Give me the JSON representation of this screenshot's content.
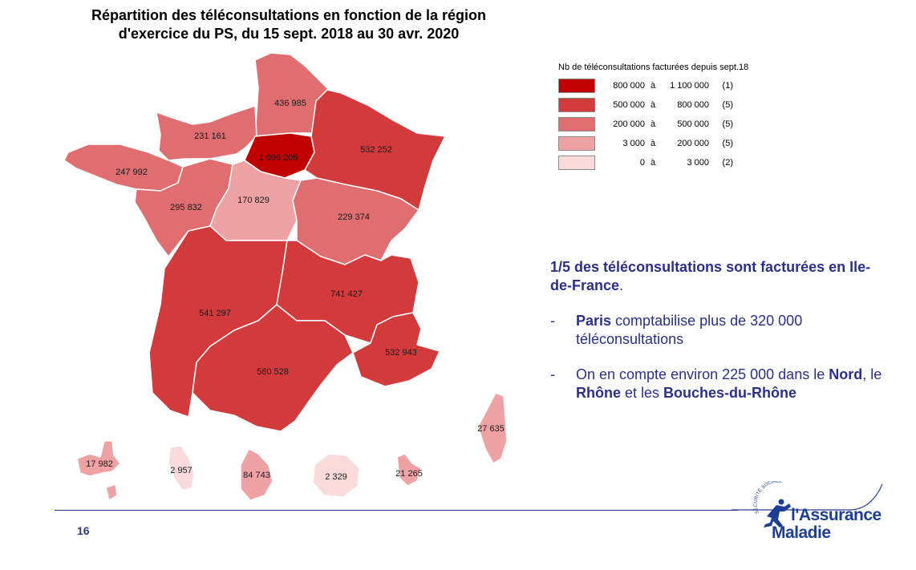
{
  "title_line1": "Répartition des téléconsultations en fonction de la région",
  "title_line2": "d'exercice du PS, du 15 sept. 2018 au 30 avr. 2020",
  "legend": {
    "title": "Nb de téléconsultations facturées depuis sept.18",
    "classes": [
      {
        "from": "800 000",
        "sep": "à",
        "to": "1 100 000",
        "count": "(1)",
        "color": "#c00000"
      },
      {
        "from": "500 000",
        "sep": "à",
        "to": "800 000",
        "count": "(5)",
        "color": "#d23a3c"
      },
      {
        "from": "200 000",
        "sep": "à",
        "to": "500 000",
        "count": "(5)",
        "color": "#e06d6f"
      },
      {
        "from": "3 000",
        "sep": "à",
        "to": "200 000",
        "count": "(5)",
        "color": "#eea2a4"
      },
      {
        "from": "0",
        "sep": "à",
        "to": "3 000",
        "count": "(2)",
        "color": "#fbdadb"
      }
    ]
  },
  "regions": {
    "hauts_de_france": {
      "value": "436 985",
      "color": "#e06d6f"
    },
    "normandie": {
      "value": "231 161",
      "color": "#e06d6f"
    },
    "ile_de_france": {
      "value": "1 096 205",
      "color": "#c00000"
    },
    "grand_est": {
      "value": "532 252",
      "color": "#d23a3c"
    },
    "bretagne": {
      "value": "247 992",
      "color": "#e06d6f"
    },
    "pays_de_la_loire": {
      "value": "295 832",
      "color": "#e06d6f"
    },
    "centre_val_de_loire": {
      "value": "170 829",
      "color": "#eea2a4"
    },
    "bourgogne_franche_comte": {
      "value": "229 374",
      "color": "#e06d6f"
    },
    "nouvelle_aquitaine": {
      "value": "541 297",
      "color": "#d23a3c"
    },
    "auvergne_rhone_alpes": {
      "value": "741 427",
      "color": "#d23a3c"
    },
    "occitanie": {
      "value": "560 528",
      "color": "#d23a3c"
    },
    "paca": {
      "value": "532 943",
      "color": "#d23a3c"
    },
    "corse": {
      "value": "27 635",
      "color": "#eea2a4"
    },
    "guadeloupe": {
      "value": "17 982",
      "color": "#eea2a4"
    },
    "martinique": {
      "value": "2 957",
      "color": "#fbdadb"
    },
    "guyane": {
      "value": "84 743",
      "color": "#eea2a4"
    },
    "reunion": {
      "value": "2 329",
      "color": "#fbdadb"
    },
    "mayotte": {
      "value": "21 265",
      "color": "#eea2a4"
    }
  },
  "headline_part1": "1/5 des téléconsultations sont facturées en Ile-de-France",
  "headline_part2": ".",
  "bullets": {
    "dash": "-",
    "b1_bold": "Paris",
    "b1_text": " comptabilise plus de 320 000 téléconsultations",
    "b2_text1": "On en compte environ 225 000 dans le ",
    "b2_bold1": "Nord",
    "b2_text2": ", le ",
    "b2_bold2": "Rhône",
    "b2_text3": " et les ",
    "b2_bold3": "Bouches-du-Rhône"
  },
  "page_number": "16",
  "logo": {
    "arc_text": "SÉCURITÉ SOCIALE",
    "line1": "l'Assurance",
    "line2": "Maladie"
  }
}
